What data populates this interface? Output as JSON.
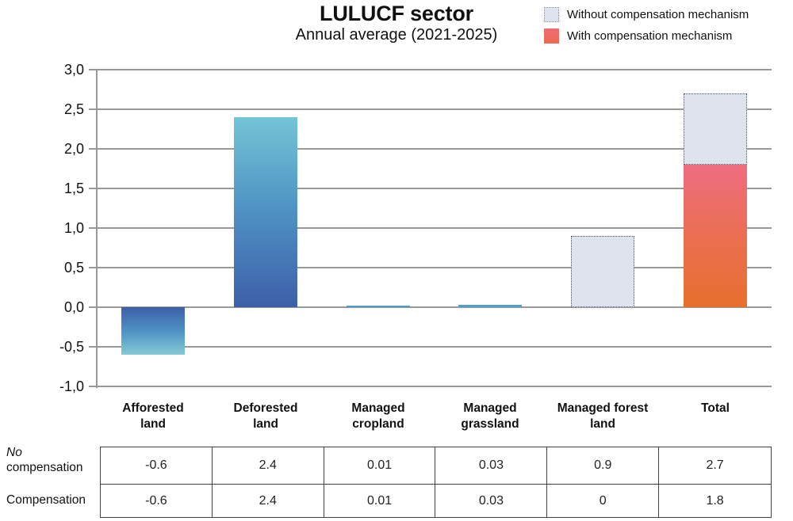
{
  "title": "LULUCF sector",
  "subtitle": "Annual average (2021-2025)",
  "legend": [
    {
      "label": "Without compensation mechanism",
      "swatch": "no-comp"
    },
    {
      "label": "With compensation mechanism",
      "swatch": "comp"
    }
  ],
  "colors": {
    "no_comp_fill": "#dfe3ee",
    "no_comp_border": "#4d5260",
    "comp_gradient_top": "#ee6d80",
    "comp_gradient_bottom": "#e7702d",
    "blue_gradient_base": "#3d5fa9",
    "blue_gradient_tip": "#7fc9d4",
    "small_bar_blue": "#4f9fcd",
    "grid": "#999999"
  },
  "chart_data": {
    "type": "bar",
    "title": "LULUCF sector",
    "subtitle": "Annual average (2021-2025)",
    "categories": [
      "Afforested land",
      "Deforested land",
      "Managed cropland",
      "Managed grassland",
      "Managed forest land",
      "Total"
    ],
    "category_lines": [
      [
        "Afforested",
        "land"
      ],
      [
        "Deforested",
        "land"
      ],
      [
        "Managed",
        "cropland"
      ],
      [
        "Managed",
        "grassland"
      ],
      [
        "Managed forest",
        "land"
      ],
      [
        "Total"
      ]
    ],
    "series": [
      {
        "name": "No compensation",
        "values": [
          -0.6,
          2.4,
          0.01,
          0.03,
          0.9,
          2.7
        ]
      },
      {
        "name": "Compensation",
        "values": [
          -0.6,
          2.4,
          0.01,
          0.03,
          0,
          1.8
        ]
      }
    ],
    "ylim": [
      -1.0,
      3.0
    ],
    "ytick_values": [
      3.0,
      2.5,
      2.0,
      1.5,
      1.0,
      0.5,
      0.0,
      -0.5,
      -1.0
    ],
    "ytick_labels": [
      "3,0",
      "2,5",
      "2,0",
      "1,5",
      "1,0",
      "0,5",
      "0,0",
      "-0,5",
      "-1,0"
    ],
    "grid": true,
    "legend_position": "top-right",
    "bars": [
      {
        "category": "Afforested land",
        "segments": [
          {
            "from": 0,
            "to": -0.6,
            "fill": "blue"
          }
        ]
      },
      {
        "category": "Deforested land",
        "segments": [
          {
            "from": 0,
            "to": 2.4,
            "fill": "blue"
          }
        ]
      },
      {
        "category": "Managed cropland",
        "segments": [
          {
            "from": 0,
            "to": 0.01,
            "fill": "small-blue"
          }
        ]
      },
      {
        "category": "Managed grassland",
        "segments": [
          {
            "from": 0,
            "to": 0.03,
            "fill": "small-blue"
          }
        ]
      },
      {
        "category": "Managed forest land",
        "segments": [
          {
            "from": 0,
            "to": 0.9,
            "fill": "no-comp"
          }
        ]
      },
      {
        "category": "Total",
        "segments": [
          {
            "from": 0,
            "to": 1.8,
            "fill": "comp"
          },
          {
            "from": 1.8,
            "to": 2.7,
            "fill": "no-comp"
          }
        ]
      }
    ]
  },
  "table": {
    "rows": [
      {
        "label_lines": [
          "No",
          "compensation"
        ],
        "first_line_italic": true,
        "values": [
          "-0.6",
          "2.4",
          "0.01",
          "0.03",
          "0.9",
          "2.7"
        ]
      },
      {
        "label_lines": [
          "Compensation"
        ],
        "first_line_italic": false,
        "values": [
          "-0.6",
          "2.4",
          "0.01",
          "0.03",
          "0",
          "1.8"
        ]
      }
    ]
  }
}
